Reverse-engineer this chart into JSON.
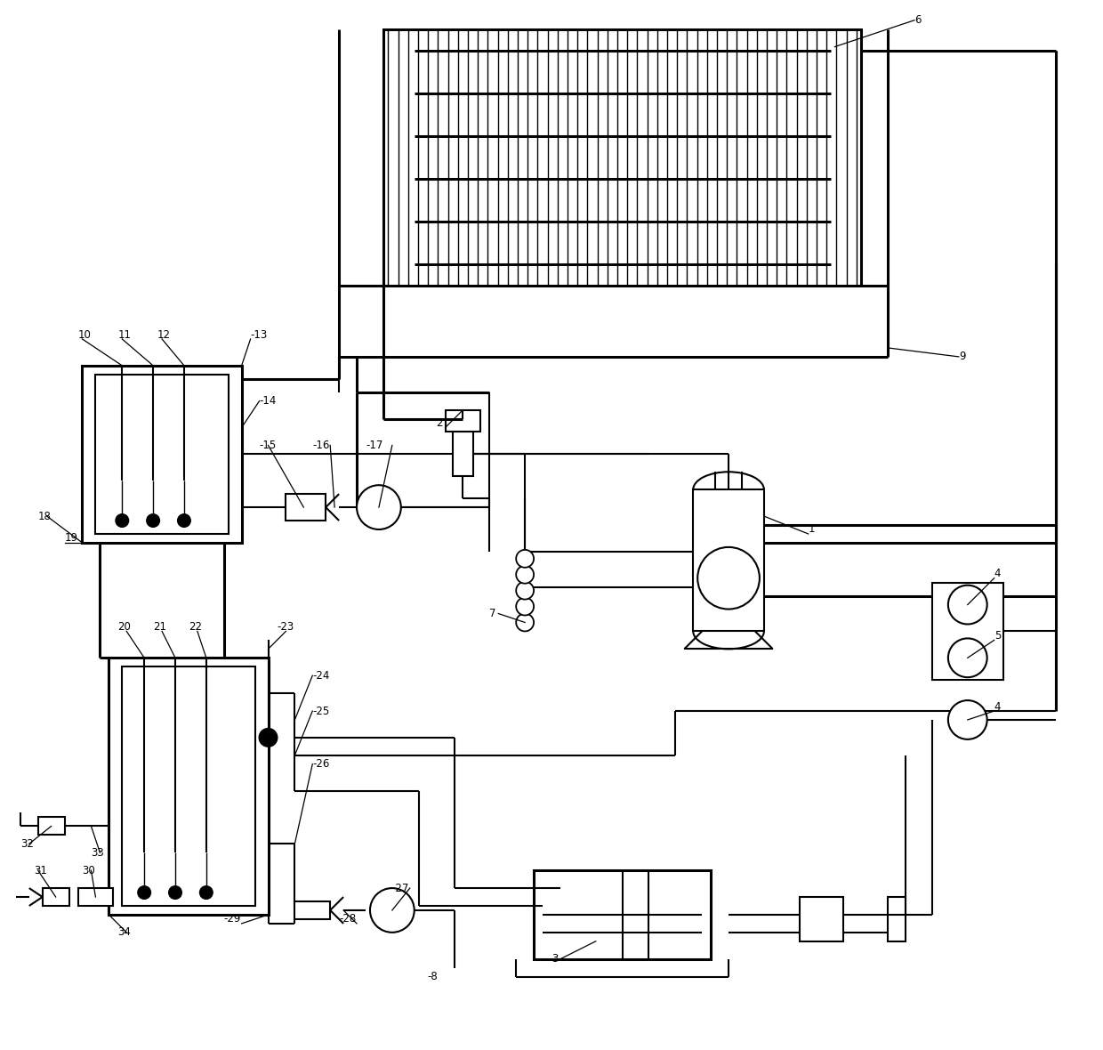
{
  "bg": "#ffffff",
  "lc": "#000000",
  "lw": 1.5,
  "tlw": 2.2,
  "fw": 12.4,
  "fh": 11.8,
  "dpi": 100
}
